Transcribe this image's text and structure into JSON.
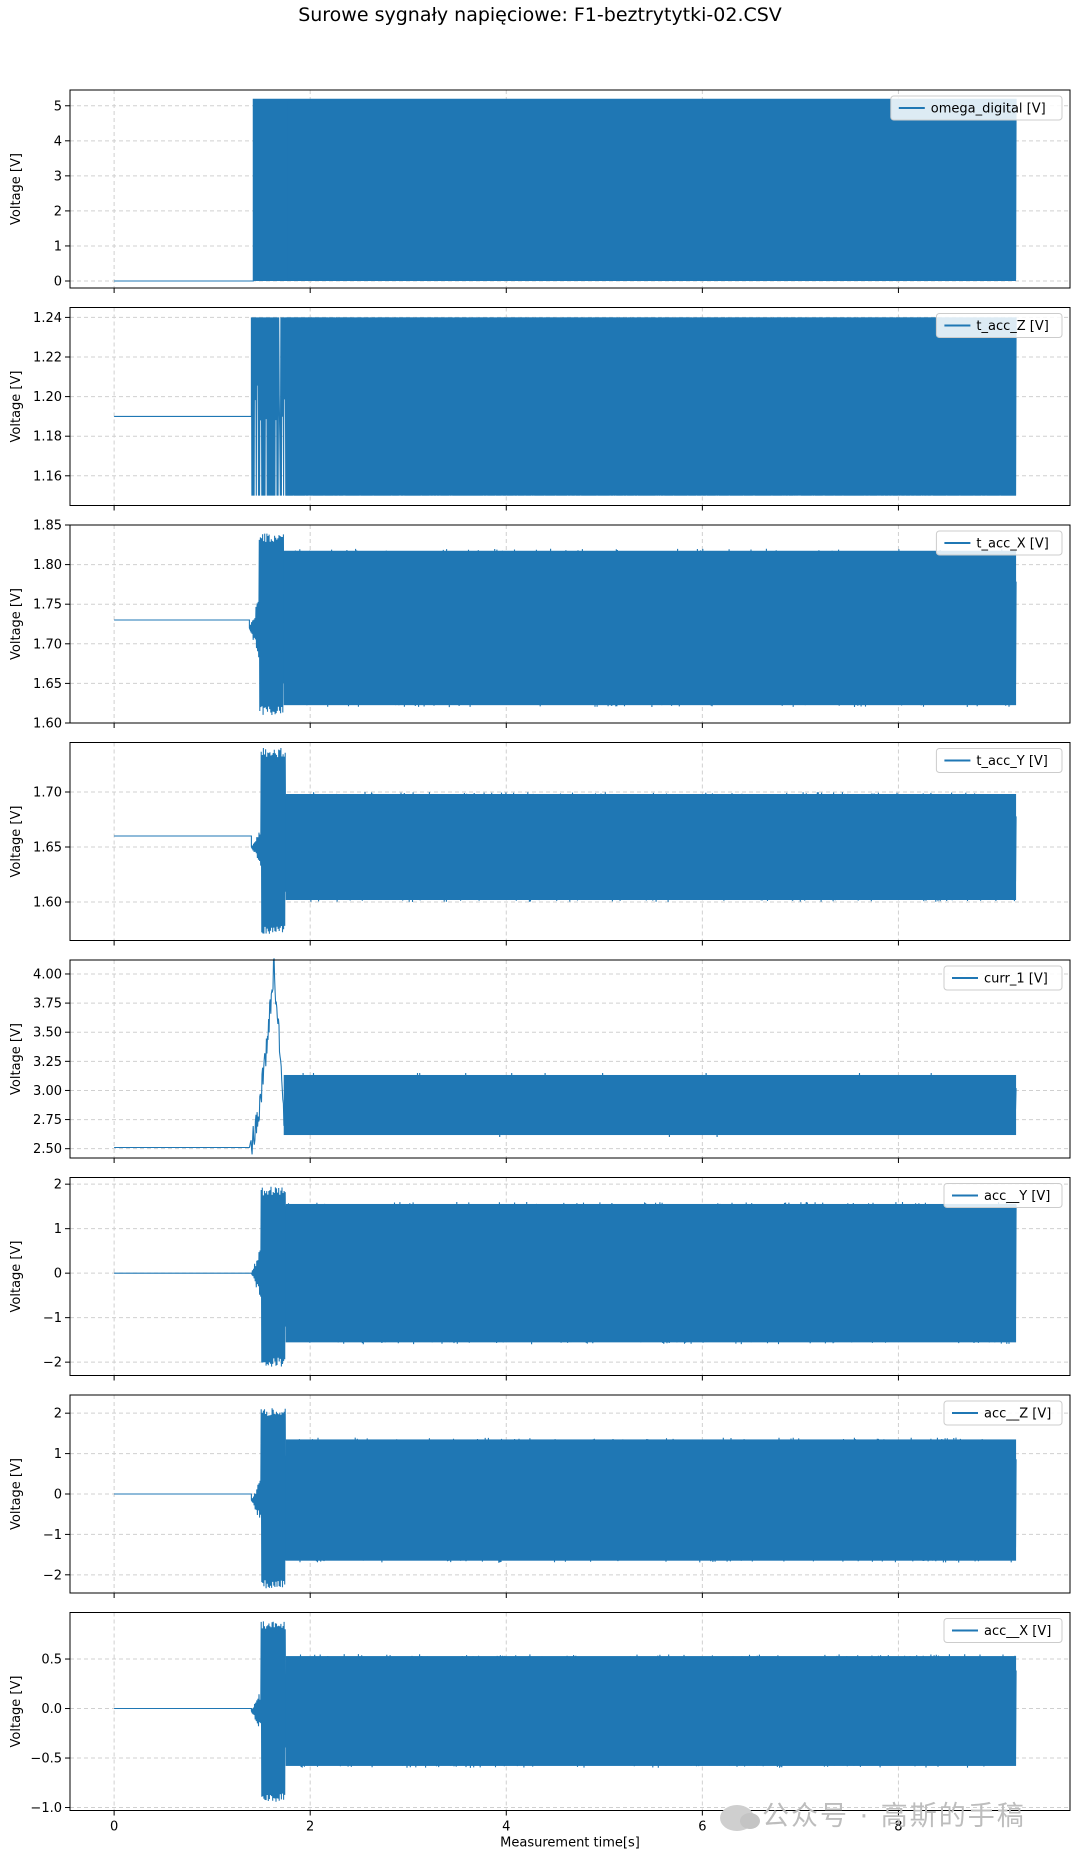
{
  "title": "Surowe sygnały napięciowe: F1-beztrytytki-02.CSV",
  "watermark": "公众号 · 高斯的手稿",
  "colors": {
    "line": "#1f77b4",
    "grid": "#d0d0d0",
    "axis": "#000000"
  },
  "chart_data": [
    {
      "type": "line",
      "series": [
        {
          "name": "omega_digital [V]",
          "pre_level": 0,
          "onset": 1.42,
          "min": 0,
          "max": 5.2,
          "sustained_low": 0,
          "sustained_high": 5.2
        }
      ],
      "ylabel": "Voltage [V]",
      "xlim": [
        -0.45,
        9.75
      ],
      "ylim": [
        -0.2,
        5.45
      ],
      "yticks": [
        0,
        1,
        2,
        3,
        4,
        5
      ],
      "ytick_labels": [
        "0",
        "1",
        "2",
        "3",
        "4",
        "5"
      ],
      "grid": true,
      "legend": "top-right"
    },
    {
      "type": "line",
      "series": [
        {
          "name": "t_acc_Z [V]",
          "pre_level": 1.19,
          "onset": 1.4,
          "min": 1.15,
          "max": 1.24,
          "sustained_low": 1.15,
          "sustained_high": 1.24
        }
      ],
      "ylabel": "Voltage [V]",
      "xlim": [
        -0.45,
        9.75
      ],
      "ylim": [
        1.145,
        1.245
      ],
      "yticks": [
        1.16,
        1.18,
        1.2,
        1.22,
        1.24
      ],
      "ytick_labels": [
        "1.16",
        "1.18",
        "1.20",
        "1.22",
        "1.24"
      ],
      "grid": true,
      "legend": "top-right"
    },
    {
      "type": "line",
      "series": [
        {
          "name": "t_acc_X [V]",
          "pre_level": 1.73,
          "onset": 1.38,
          "min": 1.61,
          "max": 1.84,
          "sustained_low": 1.62,
          "sustained_high": 1.82
        }
      ],
      "ylabel": "Voltage [V]",
      "xlim": [
        -0.45,
        9.75
      ],
      "ylim": [
        1.6,
        1.85
      ],
      "yticks": [
        1.6,
        1.65,
        1.7,
        1.75,
        1.8,
        1.85
      ],
      "ytick_labels": [
        "1.60",
        "1.65",
        "1.70",
        "1.75",
        "1.80",
        "1.85"
      ],
      "grid": true,
      "legend": "top-right"
    },
    {
      "type": "line",
      "series": [
        {
          "name": "t_acc_Y [V]",
          "pre_level": 1.66,
          "onset": 1.4,
          "min": 1.57,
          "max": 1.74,
          "sustained_low": 1.6,
          "sustained_high": 1.7
        }
      ],
      "ylabel": "Voltage [V]",
      "xlim": [
        -0.45,
        9.75
      ],
      "ylim": [
        1.565,
        1.745
      ],
      "yticks": [
        1.6,
        1.65,
        1.7
      ],
      "ytick_labels": [
        "1.60",
        "1.65",
        "1.70"
      ],
      "grid": true,
      "legend": "top-right"
    },
    {
      "type": "line",
      "series": [
        {
          "name": "curr_1 [V]",
          "pre_level": 2.51,
          "onset": 1.38,
          "min": 2.48,
          "max": 4.05,
          "sustained_low": 2.6,
          "sustained_high": 3.15
        }
      ],
      "ylabel": "Voltage [V]",
      "xlim": [
        -0.45,
        9.75
      ],
      "ylim": [
        2.42,
        4.12
      ],
      "yticks": [
        2.5,
        2.75,
        3.0,
        3.25,
        3.5,
        3.75,
        4.0
      ],
      "ytick_labels": [
        "2.50",
        "2.75",
        "3.00",
        "3.25",
        "3.50",
        "3.75",
        "4.00"
      ],
      "grid": true,
      "legend": "top-right"
    },
    {
      "type": "line",
      "series": [
        {
          "name": "acc__Y [V]",
          "pre_level": 0,
          "onset": 1.4,
          "min": -2.1,
          "max": 1.95,
          "sustained_low": -1.6,
          "sustained_high": 1.6
        }
      ],
      "ylabel": "Voltage [V]",
      "xlim": [
        -0.45,
        9.75
      ],
      "ylim": [
        -2.3,
        2.15
      ],
      "yticks": [
        -2,
        -1,
        0,
        1,
        2
      ],
      "ytick_labels": [
        "−2",
        "−1",
        "0",
        "1",
        "2"
      ],
      "grid": true,
      "legend": "top-right"
    },
    {
      "type": "line",
      "series": [
        {
          "name": "acc__Z [V]",
          "pre_level": 0,
          "onset": 1.4,
          "min": -2.35,
          "max": 2.15,
          "sustained_low": -1.7,
          "sustained_high": 1.4
        }
      ],
      "ylabel": "Voltage [V]",
      "xlim": [
        -0.45,
        9.75
      ],
      "ylim": [
        -2.45,
        2.45
      ],
      "yticks": [
        -2,
        -1,
        0,
        1,
        2
      ],
      "ytick_labels": [
        "−2",
        "−1",
        "0",
        "1",
        "2"
      ],
      "grid": true,
      "legend": "top-right"
    },
    {
      "type": "line",
      "series": [
        {
          "name": "acc__X [V]",
          "pre_level": 0,
          "onset": 1.4,
          "min": -0.95,
          "max": 0.88,
          "sustained_low": -0.6,
          "sustained_high": 0.55
        }
      ],
      "ylabel": "Voltage [V]",
      "xlabel": "Measurement time[s]",
      "xlim": [
        -0.45,
        9.75
      ],
      "ylim": [
        -1.03,
        0.97
      ],
      "yticks": [
        -1.0,
        -0.5,
        0.0,
        0.5
      ],
      "ytick_labels": [
        "−1.0",
        "−0.5",
        "0.0",
        "0.5"
      ],
      "xticks": [
        0,
        2,
        4,
        6,
        8
      ],
      "xtick_labels": [
        "0",
        "2",
        "4",
        "6",
        "8"
      ],
      "grid": true,
      "legend": "top-right"
    }
  ]
}
